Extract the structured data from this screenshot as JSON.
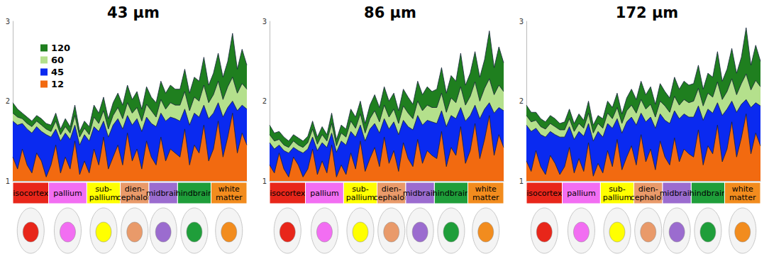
{
  "chart_data": [
    {
      "type": "area",
      "title": "43 μm",
      "legend": "upper left",
      "grid": false,
      "tick_labels": "y",
      "ylim": [
        1,
        3
      ],
      "yticks": [
        1,
        2,
        3
      ],
      "categories": [
        null,
        null,
        null,
        null,
        null,
        null,
        null,
        null,
        null,
        null,
        null,
        null,
        null,
        null,
        null,
        null,
        null,
        null,
        null,
        null,
        null,
        null,
        null,
        null,
        null,
        null,
        null,
        null,
        null,
        null,
        null,
        null,
        null,
        null,
        null,
        null,
        null,
        null,
        null,
        null,
        null,
        null,
        null,
        null,
        null,
        null,
        null,
        null,
        null,
        null
      ],
      "regions": [
        {
          "name": "isocortex",
          "count": 8,
          "color": "#e8261a"
        },
        {
          "name": "pallium",
          "count": 8,
          "color": "#f26ef2"
        },
        {
          "name": "sub-\npallium",
          "count": 7,
          "color": "#ffff00"
        },
        {
          "name": "dien-\ncephalon",
          "count": 6,
          "color": "#e99a6a"
        },
        {
          "name": "midbrain",
          "count": 6,
          "color": "#9b6ccf"
        },
        {
          "name": "hindbrain",
          "count": 7,
          "color": "#1f9e3a"
        },
        {
          "name": "white\nmatter",
          "count": 8,
          "color": "#f28c1e"
        }
      ],
      "series": [
        {
          "name": "120",
          "color": "#1f7f1f",
          "values": [
            1.98,
            1.9,
            1.85,
            1.8,
            1.75,
            1.82,
            1.78,
            1.72,
            1.7,
            1.85,
            1.65,
            1.78,
            1.68,
            1.95,
            1.62,
            1.75,
            1.68,
            1.95,
            1.85,
            2.05,
            1.78,
            1.98,
            2.1,
            1.95,
            2.2,
            2.02,
            2.12,
            1.9,
            2.18,
            2.05,
            1.98,
            2.25,
            2.1,
            2.2,
            2.15,
            2.15,
            2.4,
            2.1,
            2.3,
            2.25,
            2.55,
            2.2,
            2.35,
            2.6,
            2.3,
            2.5,
            2.85,
            2.4,
            2.65,
            2.45
          ]
        },
        {
          "name": "60",
          "color": "#b4e08c",
          "values": [
            1.85,
            1.8,
            1.78,
            1.72,
            1.68,
            1.75,
            1.7,
            1.65,
            1.62,
            1.75,
            1.58,
            1.68,
            1.6,
            1.82,
            1.55,
            1.66,
            1.58,
            1.8,
            1.72,
            1.88,
            1.65,
            1.82,
            1.92,
            1.78,
            1.98,
            1.85,
            1.92,
            1.75,
            1.96,
            1.88,
            1.8,
            2.02,
            1.9,
            1.98,
            1.95,
            1.95,
            2.12,
            1.88,
            2.05,
            2.0,
            2.2,
            1.98,
            2.08,
            2.25,
            2.02,
            2.18,
            2.3,
            2.1,
            2.22,
            2.15
          ]
        },
        {
          "name": "45",
          "color": "#0a2af0",
          "values": [
            1.75,
            1.7,
            1.72,
            1.65,
            1.6,
            1.68,
            1.62,
            1.58,
            1.55,
            1.65,
            1.5,
            1.6,
            1.52,
            1.7,
            1.45,
            1.58,
            1.5,
            1.68,
            1.62,
            1.75,
            1.55,
            1.7,
            1.78,
            1.65,
            1.82,
            1.7,
            1.78,
            1.62,
            1.8,
            1.72,
            1.68,
            1.85,
            1.75,
            1.8,
            1.78,
            1.75,
            1.9,
            1.7,
            1.85,
            1.8,
            1.95,
            1.78,
            1.85,
            1.98,
            1.8,
            1.92,
            2.0,
            1.88,
            1.95,
            1.9
          ]
        },
        {
          "name": "12",
          "color": "#f26a10",
          "values": [
            1.3,
            1.15,
            1.4,
            1.2,
            1.1,
            1.35,
            1.25,
            1.05,
            1.2,
            1.45,
            1.1,
            1.3,
            1.15,
            1.5,
            1.08,
            1.25,
            1.1,
            1.4,
            1.2,
            1.55,
            1.15,
            1.3,
            1.45,
            1.2,
            1.6,
            1.25,
            1.4,
            1.15,
            1.5,
            1.3,
            1.2,
            1.55,
            1.25,
            1.4,
            1.35,
            1.3,
            1.65,
            1.2,
            1.45,
            1.35,
            1.7,
            1.25,
            1.4,
            1.75,
            1.3,
            1.55,
            1.85,
            1.35,
            1.6,
            1.45
          ]
        }
      ]
    },
    {
      "type": "area",
      "title": "86 μm",
      "grid": false,
      "tick_labels": "y",
      "ylim": [
        1,
        3
      ],
      "yticks": [
        1,
        2,
        3
      ],
      "categories": [
        null,
        null,
        null,
        null,
        null,
        null,
        null,
        null,
        null,
        null,
        null,
        null,
        null,
        null,
        null,
        null,
        null,
        null,
        null,
        null,
        null,
        null,
        null,
        null,
        null,
        null,
        null,
        null,
        null,
        null,
        null,
        null,
        null,
        null,
        null,
        null,
        null,
        null,
        null,
        null,
        null,
        null,
        null,
        null,
        null,
        null,
        null,
        null,
        null,
        null
      ],
      "regions": [
        {
          "name": "isocortex",
          "count": 8,
          "color": "#e8261a"
        },
        {
          "name": "pallium",
          "count": 8,
          "color": "#f26ef2"
        },
        {
          "name": "sub-\npallium",
          "count": 7,
          "color": "#ffff00"
        },
        {
          "name": "dien-\ncephalon",
          "count": 6,
          "color": "#e99a6a"
        },
        {
          "name": "midbrain",
          "count": 6,
          "color": "#9b6ccf"
        },
        {
          "name": "hindbrain",
          "count": 7,
          "color": "#1f9e3a"
        },
        {
          "name": "white\nmatter",
          "count": 8,
          "color": "#f28c1e"
        }
      ],
      "series": [
        {
          "name": "120",
          "color": "#1f7f1f",
          "values": [
            1.7,
            1.6,
            1.62,
            1.55,
            1.5,
            1.58,
            1.54,
            1.5,
            1.56,
            1.75,
            1.55,
            1.68,
            1.58,
            1.85,
            1.52,
            1.7,
            1.65,
            1.9,
            1.8,
            2.0,
            1.72,
            1.95,
            2.08,
            1.92,
            2.18,
            2.0,
            2.1,
            1.88,
            2.15,
            2.05,
            1.96,
            2.25,
            2.08,
            2.18,
            2.12,
            2.15,
            2.42,
            2.1,
            2.32,
            2.25,
            2.6,
            2.2,
            2.35,
            2.62,
            2.3,
            2.52,
            2.88,
            2.42,
            2.68,
            2.48
          ]
        },
        {
          "name": "60",
          "color": "#b4e08c",
          "values": [
            1.58,
            1.5,
            1.52,
            1.45,
            1.42,
            1.5,
            1.45,
            1.42,
            1.48,
            1.65,
            1.46,
            1.58,
            1.5,
            1.72,
            1.44,
            1.6,
            1.55,
            1.75,
            1.66,
            1.84,
            1.6,
            1.78,
            1.88,
            1.74,
            1.95,
            1.8,
            1.9,
            1.72,
            1.94,
            1.85,
            1.78,
            2.0,
            1.88,
            1.95,
            1.92,
            1.92,
            2.1,
            1.86,
            2.04,
            1.98,
            2.18,
            1.95,
            2.06,
            2.24,
            2.0,
            2.16,
            2.28,
            2.08,
            2.2,
            2.12
          ]
        },
        {
          "name": "45",
          "color": "#0a2af0",
          "values": [
            1.48,
            1.4,
            1.45,
            1.38,
            1.35,
            1.42,
            1.38,
            1.35,
            1.4,
            1.55,
            1.38,
            1.48,
            1.42,
            1.6,
            1.36,
            1.5,
            1.45,
            1.62,
            1.55,
            1.7,
            1.5,
            1.65,
            1.72,
            1.6,
            1.78,
            1.65,
            1.74,
            1.58,
            1.76,
            1.68,
            1.64,
            1.82,
            1.7,
            1.76,
            1.74,
            1.72,
            1.88,
            1.68,
            1.82,
            1.78,
            1.92,
            1.75,
            1.82,
            1.95,
            1.78,
            1.9,
            1.98,
            1.85,
            1.92,
            1.88
          ]
        },
        {
          "name": "12",
          "color": "#f26a10",
          "values": [
            1.2,
            1.1,
            1.35,
            1.15,
            1.05,
            1.3,
            1.2,
            1.05,
            1.15,
            1.4,
            1.08,
            1.25,
            1.1,
            1.45,
            1.05,
            1.2,
            1.08,
            1.35,
            1.15,
            1.5,
            1.12,
            1.28,
            1.42,
            1.18,
            1.55,
            1.22,
            1.38,
            1.12,
            1.48,
            1.28,
            1.18,
            1.52,
            1.22,
            1.38,
            1.32,
            1.28,
            1.62,
            1.18,
            1.42,
            1.32,
            1.68,
            1.22,
            1.38,
            1.72,
            1.28,
            1.52,
            1.82,
            1.32,
            1.58,
            1.42
          ]
        }
      ]
    },
    {
      "type": "area",
      "title": "172 μm",
      "grid": false,
      "tick_labels": "y",
      "ylim": [
        1,
        3
      ],
      "yticks": [
        1,
        2,
        3
      ],
      "categories": [
        null,
        null,
        null,
        null,
        null,
        null,
        null,
        null,
        null,
        null,
        null,
        null,
        null,
        null,
        null,
        null,
        null,
        null,
        null,
        null,
        null,
        null,
        null,
        null,
        null,
        null,
        null,
        null,
        null,
        null,
        null,
        null,
        null,
        null,
        null,
        null,
        null,
        null,
        null,
        null,
        null,
        null,
        null,
        null,
        null,
        null,
        null,
        null,
        null,
        null
      ],
      "regions": [
        {
          "name": "isocortex",
          "count": 8,
          "color": "#e8261a"
        },
        {
          "name": "pallium",
          "count": 8,
          "color": "#f26ef2"
        },
        {
          "name": "sub-\npallium",
          "count": 7,
          "color": "#ffff00"
        },
        {
          "name": "dien-\ncephalon",
          "count": 6,
          "color": "#e99a6a"
        },
        {
          "name": "midbrain",
          "count": 6,
          "color": "#9b6ccf"
        },
        {
          "name": "hindbrain",
          "count": 7,
          "color": "#1f9e3a"
        },
        {
          "name": "white\nmatter",
          "count": 8,
          "color": "#f28c1e"
        }
      ],
      "series": [
        {
          "name": "120",
          "color": "#1f7f1f",
          "values": [
            1.95,
            1.86,
            1.86,
            1.78,
            1.74,
            1.82,
            1.78,
            1.72,
            1.74,
            1.9,
            1.72,
            1.84,
            1.76,
            2.0,
            1.7,
            1.82,
            1.78,
            2.0,
            1.92,
            2.1,
            1.84,
            2.04,
            2.15,
            2.02,
            2.25,
            2.08,
            2.18,
            1.96,
            2.22,
            2.12,
            2.04,
            2.3,
            2.15,
            2.25,
            2.2,
            2.22,
            2.45,
            2.15,
            2.35,
            2.3,
            2.62,
            2.25,
            2.4,
            2.66,
            2.35,
            2.55,
            2.92,
            2.45,
            2.7,
            2.5
          ]
        },
        {
          "name": "60",
          "color": "#b4e08c",
          "values": [
            1.82,
            1.74,
            1.76,
            1.68,
            1.65,
            1.72,
            1.68,
            1.64,
            1.64,
            1.78,
            1.62,
            1.72,
            1.66,
            1.85,
            1.6,
            1.72,
            1.66,
            1.85,
            1.78,
            1.92,
            1.72,
            1.88,
            1.95,
            1.85,
            2.02,
            1.9,
            1.96,
            1.8,
            2.0,
            1.94,
            1.86,
            2.06,
            1.95,
            2.02,
            1.98,
            2.0,
            2.16,
            1.94,
            2.1,
            2.05,
            2.24,
            2.02,
            2.12,
            2.28,
            2.08,
            2.22,
            2.34,
            2.14,
            2.26,
            2.18
          ]
        },
        {
          "name": "45",
          "color": "#0a2af0",
          "values": [
            1.7,
            1.62,
            1.66,
            1.58,
            1.55,
            1.62,
            1.58,
            1.55,
            1.55,
            1.68,
            1.52,
            1.62,
            1.56,
            1.72,
            1.5,
            1.62,
            1.55,
            1.72,
            1.66,
            1.78,
            1.6,
            1.74,
            1.8,
            1.7,
            1.85,
            1.74,
            1.8,
            1.66,
            1.84,
            1.76,
            1.72,
            1.88,
            1.78,
            1.84,
            1.8,
            1.8,
            1.94,
            1.76,
            1.9,
            1.85,
            1.98,
            1.82,
            1.9,
            2.0,
            1.86,
            1.96,
            2.02,
            1.92,
            1.98,
            1.94
          ]
        },
        {
          "name": "12",
          "color": "#f26a10",
          "values": [
            1.25,
            1.12,
            1.38,
            1.18,
            1.08,
            1.32,
            1.22,
            1.08,
            1.18,
            1.42,
            1.1,
            1.28,
            1.12,
            1.48,
            1.06,
            1.22,
            1.1,
            1.38,
            1.18,
            1.52,
            1.14,
            1.3,
            1.44,
            1.2,
            1.58,
            1.24,
            1.4,
            1.14,
            1.5,
            1.3,
            1.2,
            1.54,
            1.24,
            1.4,
            1.34,
            1.3,
            1.64,
            1.2,
            1.44,
            1.34,
            1.7,
            1.24,
            1.4,
            1.74,
            1.3,
            1.54,
            1.84,
            1.34,
            1.6,
            1.44
          ]
        }
      ]
    }
  ]
}
